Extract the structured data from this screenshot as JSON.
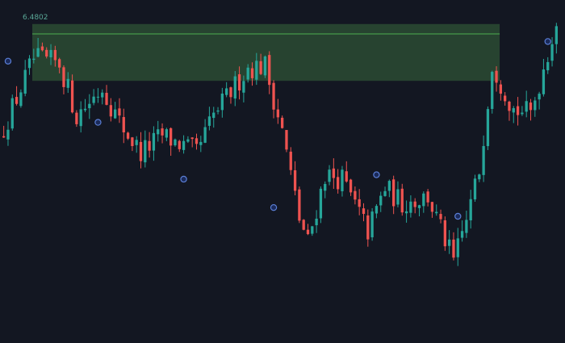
{
  "chart_data": {
    "type": "candlestick",
    "title": "",
    "xlabel": "",
    "ylabel": "",
    "grid": false,
    "ylim": [
      6.333,
      6.49
    ],
    "zone_label": "6.4802",
    "supply_zone": {
      "top": 6.479,
      "bottom": 6.453,
      "line": 6.4745,
      "start_index": 0,
      "end_index": 115
    },
    "colors": {
      "background": "#131722",
      "up": "#26a69a",
      "down": "#ef5350",
      "zone_fill": "#2b4b33",
      "zone_line": "#4caf50",
      "zone_label": "#5aa897",
      "marker_fill": "#1a2a5a",
      "marker_stroke": "#5b7fd6"
    },
    "trend": [
      [
        0,
        6.427
      ],
      [
        8,
        6.463
      ],
      [
        14,
        6.461
      ],
      [
        18,
        6.437
      ],
      [
        24,
        6.45
      ],
      [
        28,
        6.434
      ],
      [
        33,
        6.42
      ],
      [
        38,
        6.428
      ],
      [
        46,
        6.42
      ],
      [
        50,
        6.437
      ],
      [
        58,
        6.459
      ],
      [
        62,
        6.46
      ],
      [
        66,
        6.43
      ],
      [
        70,
        6.39
      ],
      [
        72,
        6.379
      ],
      [
        76,
        6.41
      ],
      [
        80,
        6.408
      ],
      [
        86,
        6.384
      ],
      [
        90,
        6.404
      ],
      [
        94,
        6.397
      ],
      [
        100,
        6.4
      ],
      [
        106,
        6.37
      ],
      [
        109,
        6.389
      ],
      [
        112,
        6.412
      ],
      [
        115,
        6.461
      ],
      [
        120,
        6.44
      ],
      [
        124,
        6.438
      ],
      [
        128,
        6.466
      ],
      [
        130,
        6.48
      ]
    ],
    "markers": [
      {
        "index": 1,
        "price": 6.462
      },
      {
        "index": 22,
        "price": 6.434
      },
      {
        "index": 42,
        "price": 6.408
      },
      {
        "index": 63,
        "price": 6.395
      },
      {
        "index": 87,
        "price": 6.41
      },
      {
        "index": 106,
        "price": 6.391
      },
      {
        "index": 127,
        "price": 6.471
      }
    ]
  }
}
